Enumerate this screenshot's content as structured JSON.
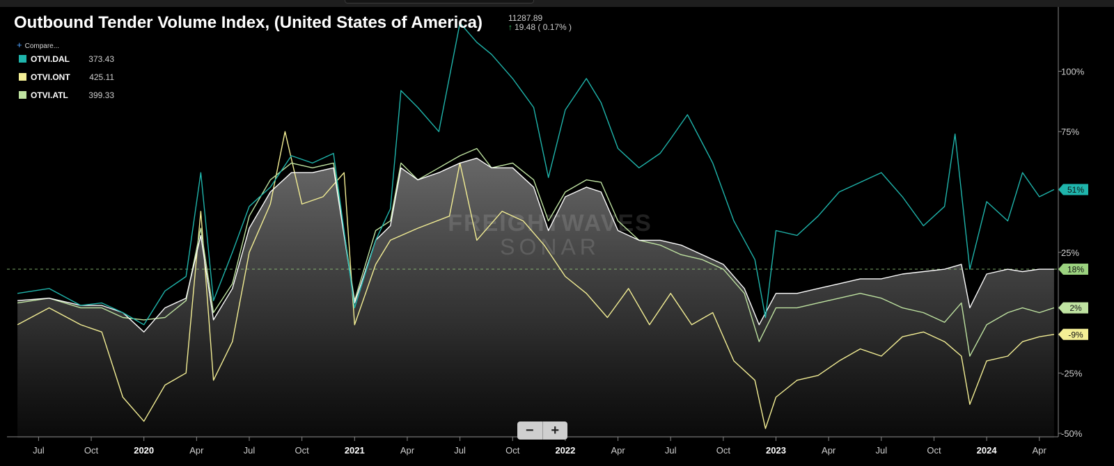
{
  "header": {
    "title": "Outbound Tender Volume Index, (United States of America)",
    "index_value": "11287.89",
    "index_change": "19.48 ( 0.17% )",
    "compare_label": "Compare..."
  },
  "legend": [
    {
      "name": "OTVI.DAL",
      "value": "373.43",
      "color": "#1fb5ac"
    },
    {
      "name": "OTVI.ONT",
      "value": "425.11",
      "color": "#f4ef95"
    },
    {
      "name": "OTVI.ATL",
      "value": "399.33",
      "color": "#bfe3a1"
    }
  ],
  "watermark": {
    "line1": "FREIGHTWAVES",
    "line2": "SONAR"
  },
  "zoom": {
    "minus": "−",
    "plus": "+"
  },
  "chart_data": {
    "type": "line",
    "x_ticks": [
      "Jul",
      "Oct",
      "2020",
      "Apr",
      "Jul",
      "Oct",
      "2021",
      "Apr",
      "Jul",
      "Oct",
      "2022",
      "Apr",
      "Jul",
      "Oct",
      "2023",
      "Apr",
      "Jul",
      "Oct",
      "2024",
      "Apr"
    ],
    "y_ticks": [
      "100%",
      "75%",
      "25%",
      "-25%",
      "-50%"
    ],
    "ylim": [
      -50,
      120
    ],
    "reference_line": 18,
    "x_range": [
      "2019-05",
      "2024-04"
    ],
    "series": [
      {
        "name": "OTVI.DAL",
        "color": "#1fb5ac",
        "end_label": "51%",
        "values": [
          [
            2019.4,
            8
          ],
          [
            2019.55,
            10
          ],
          [
            2019.7,
            3
          ],
          [
            2019.8,
            4
          ],
          [
            2019.9,
            0
          ],
          [
            2020.0,
            -5
          ],
          [
            2020.1,
            9
          ],
          [
            2020.2,
            15
          ],
          [
            2020.27,
            58
          ],
          [
            2020.33,
            5
          ],
          [
            2020.42,
            25
          ],
          [
            2020.5,
            44
          ],
          [
            2020.6,
            52
          ],
          [
            2020.7,
            65
          ],
          [
            2020.8,
            62
          ],
          [
            2020.9,
            66
          ],
          [
            2021.0,
            2
          ],
          [
            2021.1,
            30
          ],
          [
            2021.17,
            43
          ],
          [
            2021.22,
            92
          ],
          [
            2021.3,
            85
          ],
          [
            2021.4,
            75
          ],
          [
            2021.5,
            120
          ],
          [
            2021.58,
            112
          ],
          [
            2021.65,
            107
          ],
          [
            2021.75,
            97
          ],
          [
            2021.85,
            85
          ],
          [
            2021.92,
            56
          ],
          [
            2022.0,
            84
          ],
          [
            2022.1,
            97
          ],
          [
            2022.17,
            87
          ],
          [
            2022.25,
            68
          ],
          [
            2022.35,
            60
          ],
          [
            2022.45,
            66
          ],
          [
            2022.5,
            72
          ],
          [
            2022.58,
            82
          ],
          [
            2022.7,
            62
          ],
          [
            2022.8,
            38
          ],
          [
            2022.9,
            22
          ],
          [
            2022.95,
            -2
          ],
          [
            2023.0,
            34
          ],
          [
            2023.1,
            32
          ],
          [
            2023.2,
            40
          ],
          [
            2023.3,
            50
          ],
          [
            2023.4,
            54
          ],
          [
            2023.5,
            58
          ],
          [
            2023.6,
            48
          ],
          [
            2023.7,
            36
          ],
          [
            2023.8,
            44
          ],
          [
            2023.85,
            74
          ],
          [
            2023.92,
            18
          ],
          [
            2024.0,
            46
          ],
          [
            2024.1,
            38
          ],
          [
            2024.17,
            58
          ],
          [
            2024.25,
            48
          ],
          [
            2024.32,
            51
          ]
        ]
      },
      {
        "name": "OTVI.ONT",
        "color": "#f4ef95",
        "end_label": "-9%",
        "values": [
          [
            2019.4,
            -5
          ],
          [
            2019.55,
            2
          ],
          [
            2019.7,
            -5
          ],
          [
            2019.8,
            -8
          ],
          [
            2019.9,
            -35
          ],
          [
            2020.0,
            -45
          ],
          [
            2020.1,
            -30
          ],
          [
            2020.2,
            -25
          ],
          [
            2020.27,
            42
          ],
          [
            2020.33,
            -28
          ],
          [
            2020.42,
            -12
          ],
          [
            2020.5,
            25
          ],
          [
            2020.6,
            45
          ],
          [
            2020.67,
            75
          ],
          [
            2020.75,
            45
          ],
          [
            2020.85,
            48
          ],
          [
            2020.95,
            58
          ],
          [
            2021.0,
            -5
          ],
          [
            2021.1,
            20
          ],
          [
            2021.17,
            30
          ],
          [
            2021.3,
            35
          ],
          [
            2021.45,
            40
          ],
          [
            2021.5,
            62
          ],
          [
            2021.58,
            30
          ],
          [
            2021.7,
            42
          ],
          [
            2021.8,
            38
          ],
          [
            2021.9,
            28
          ],
          [
            2022.0,
            15
          ],
          [
            2022.1,
            8
          ],
          [
            2022.2,
            -2
          ],
          [
            2022.3,
            10
          ],
          [
            2022.4,
            -5
          ],
          [
            2022.5,
            8
          ],
          [
            2022.6,
            -5
          ],
          [
            2022.7,
            0
          ],
          [
            2022.8,
            -20
          ],
          [
            2022.9,
            -28
          ],
          [
            2022.95,
            -48
          ],
          [
            2023.0,
            -35
          ],
          [
            2023.1,
            -28
          ],
          [
            2023.2,
            -26
          ],
          [
            2023.3,
            -20
          ],
          [
            2023.4,
            -15
          ],
          [
            2023.5,
            -18
          ],
          [
            2023.6,
            -10
          ],
          [
            2023.7,
            -8
          ],
          [
            2023.8,
            -12
          ],
          [
            2023.88,
            -18
          ],
          [
            2023.92,
            -38
          ],
          [
            2024.0,
            -20
          ],
          [
            2024.1,
            -18
          ],
          [
            2024.17,
            -12
          ],
          [
            2024.25,
            -10
          ],
          [
            2024.32,
            -9
          ]
        ]
      },
      {
        "name": "OTVI.ATL",
        "color": "#bfe3a1",
        "end_label": "2%",
        "values": [
          [
            2019.4,
            4
          ],
          [
            2019.55,
            6
          ],
          [
            2019.7,
            2
          ],
          [
            2019.8,
            2
          ],
          [
            2019.9,
            -2
          ],
          [
            2020.0,
            -3
          ],
          [
            2020.1,
            -2
          ],
          [
            2020.2,
            5
          ],
          [
            2020.27,
            35
          ],
          [
            2020.33,
            0
          ],
          [
            2020.42,
            12
          ],
          [
            2020.5,
            40
          ],
          [
            2020.6,
            55
          ],
          [
            2020.7,
            62
          ],
          [
            2020.8,
            60
          ],
          [
            2020.9,
            62
          ],
          [
            2021.0,
            5
          ],
          [
            2021.1,
            34
          ],
          [
            2021.17,
            38
          ],
          [
            2021.22,
            62
          ],
          [
            2021.3,
            55
          ],
          [
            2021.4,
            60
          ],
          [
            2021.5,
            65
          ],
          [
            2021.58,
            68
          ],
          [
            2021.65,
            60
          ],
          [
            2021.75,
            62
          ],
          [
            2021.85,
            55
          ],
          [
            2021.92,
            38
          ],
          [
            2022.0,
            50
          ],
          [
            2022.1,
            55
          ],
          [
            2022.17,
            54
          ],
          [
            2022.25,
            38
          ],
          [
            2022.35,
            30
          ],
          [
            2022.45,
            28
          ],
          [
            2022.55,
            24
          ],
          [
            2022.65,
            22
          ],
          [
            2022.75,
            18
          ],
          [
            2022.85,
            8
          ],
          [
            2022.92,
            -12
          ],
          [
            2023.0,
            2
          ],
          [
            2023.1,
            2
          ],
          [
            2023.2,
            4
          ],
          [
            2023.3,
            6
          ],
          [
            2023.4,
            8
          ],
          [
            2023.5,
            6
          ],
          [
            2023.6,
            2
          ],
          [
            2023.7,
            0
          ],
          [
            2023.8,
            -4
          ],
          [
            2023.88,
            4
          ],
          [
            2023.92,
            -18
          ],
          [
            2024.0,
            -5
          ],
          [
            2024.1,
            0
          ],
          [
            2024.17,
            2
          ],
          [
            2024.25,
            0
          ],
          [
            2024.32,
            2
          ]
        ]
      },
      {
        "name": "",
        "color": "#ffffff",
        "end_label": "18%",
        "area": true,
        "values": [
          [
            2019.4,
            5
          ],
          [
            2019.55,
            6
          ],
          [
            2019.7,
            3
          ],
          [
            2019.8,
            3
          ],
          [
            2019.9,
            0
          ],
          [
            2020.0,
            -8
          ],
          [
            2020.1,
            2
          ],
          [
            2020.2,
            6
          ],
          [
            2020.27,
            32
          ],
          [
            2020.33,
            -3
          ],
          [
            2020.42,
            10
          ],
          [
            2020.5,
            35
          ],
          [
            2020.6,
            50
          ],
          [
            2020.7,
            58
          ],
          [
            2020.8,
            58
          ],
          [
            2020.9,
            60
          ],
          [
            2021.0,
            4
          ],
          [
            2021.1,
            30
          ],
          [
            2021.17,
            36
          ],
          [
            2021.22,
            60
          ],
          [
            2021.3,
            55
          ],
          [
            2021.4,
            58
          ],
          [
            2021.5,
            62
          ],
          [
            2021.58,
            64
          ],
          [
            2021.65,
            60
          ],
          [
            2021.75,
            60
          ],
          [
            2021.85,
            52
          ],
          [
            2021.92,
            34
          ],
          [
            2022.0,
            48
          ],
          [
            2022.1,
            52
          ],
          [
            2022.17,
            50
          ],
          [
            2022.25,
            34
          ],
          [
            2022.35,
            30
          ],
          [
            2022.45,
            30
          ],
          [
            2022.55,
            28
          ],
          [
            2022.65,
            24
          ],
          [
            2022.75,
            20
          ],
          [
            2022.85,
            10
          ],
          [
            2022.92,
            -5
          ],
          [
            2023.0,
            8
          ],
          [
            2023.1,
            8
          ],
          [
            2023.2,
            10
          ],
          [
            2023.3,
            12
          ],
          [
            2023.4,
            14
          ],
          [
            2023.5,
            14
          ],
          [
            2023.6,
            16
          ],
          [
            2023.7,
            17
          ],
          [
            2023.8,
            18
          ],
          [
            2023.88,
            20
          ],
          [
            2023.92,
            2
          ],
          [
            2024.0,
            16
          ],
          [
            2024.1,
            18
          ],
          [
            2024.17,
            17
          ],
          [
            2024.25,
            18
          ],
          [
            2024.32,
            18
          ]
        ]
      }
    ]
  }
}
